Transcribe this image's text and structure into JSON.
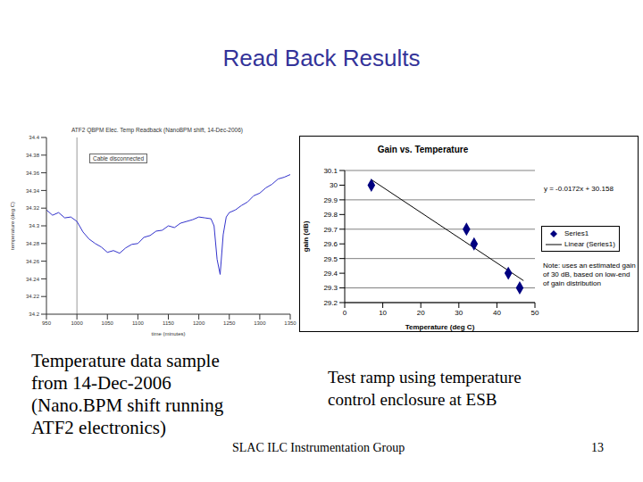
{
  "title": "Read Back Results",
  "captions": [
    [
      "Temperature data sample",
      "from 14-Dec-2006",
      "(Nano.BPM shift running",
      "ATF2 electronics)"
    ],
    [
      "Test ramp using temperature",
      "control enclosure at ESB"
    ]
  ],
  "footer": "SLAC ILC Instrumentation Group",
  "page": "13",
  "chart_data": [
    {
      "type": "line",
      "title": "ATF2 QBPM Elec. Temp Readback (NanoBPM shift, 14-Dec-2006)",
      "x_label": "time (minutes)",
      "y_label": "temperature (deg C)",
      "x": [
        950,
        960,
        970,
        980,
        990,
        1000,
        1010,
        1020,
        1030,
        1040,
        1050,
        1060,
        1070,
        1080,
        1090,
        1100,
        1110,
        1120,
        1130,
        1140,
        1150,
        1160,
        1170,
        1180,
        1190,
        1200,
        1210,
        1220,
        1225,
        1230,
        1235,
        1240,
        1245,
        1250,
        1260,
        1270,
        1280,
        1290,
        1300,
        1310,
        1320,
        1330,
        1340,
        1350
      ],
      "series": [
        {
          "name": "temperature",
          "color": "#3333cc",
          "values": [
            34.318,
            34.312,
            34.315,
            34.309,
            34.31,
            34.305,
            34.293,
            34.285,
            34.28,
            34.276,
            34.27,
            34.272,
            34.269,
            34.275,
            34.279,
            34.28,
            34.287,
            34.289,
            34.294,
            34.295,
            34.3,
            34.298,
            34.303,
            34.305,
            34.307,
            34.31,
            34.309,
            34.308,
            34.3,
            34.262,
            34.245,
            34.29,
            34.31,
            34.315,
            34.318,
            34.323,
            34.327,
            34.334,
            34.337,
            34.343,
            34.347,
            34.353,
            34.355,
            34.358
          ]
        }
      ],
      "xlim": [
        950,
        1350
      ],
      "xticks": [
        950,
        1000,
        1050,
        1100,
        1150,
        1200,
        1250,
        1300,
        1350
      ],
      "ylim": [
        34.2,
        34.4
      ],
      "yticks": [
        34.2,
        34.22,
        34.24,
        34.26,
        34.28,
        34.3,
        34.32,
        34.34,
        34.36,
        34.38,
        34.4
      ],
      "grid": false,
      "annotation": {
        "text": "Cable disconnected",
        "x": 1000
      }
    },
    {
      "type": "scatter",
      "title": "Gain vs. Temperature",
      "x_label": "Temperature (deg C)",
      "y_label": "gain (dB)",
      "series": [
        {
          "name": "Series1",
          "type": "scatter",
          "color": "#000080",
          "marker": "diamond",
          "x": [
            7,
            32,
            34,
            43,
            46
          ],
          "values": [
            30.0,
            29.7,
            29.6,
            29.4,
            29.3
          ]
        },
        {
          "name": "Linear (Series1)",
          "type": "line",
          "color": "#000000",
          "line_style": "solid",
          "x": [
            7,
            47
          ],
          "values": [
            30.0376,
            29.3496
          ]
        }
      ],
      "equation": "y = -0.0172x + 30.158",
      "note": "Note: uses an estimated gain of 30 dB, based on low-end of gain distribution",
      "xlim": [
        0,
        50
      ],
      "xticks": [
        0,
        10,
        20,
        30,
        40,
        50
      ],
      "ylim": [
        29.2,
        30.1
      ],
      "yticks": [
        29.2,
        29.3,
        29.4,
        29.5,
        29.6,
        29.7,
        29.8,
        29.9,
        30,
        30.1
      ],
      "grid": true,
      "legend": "right"
    }
  ]
}
